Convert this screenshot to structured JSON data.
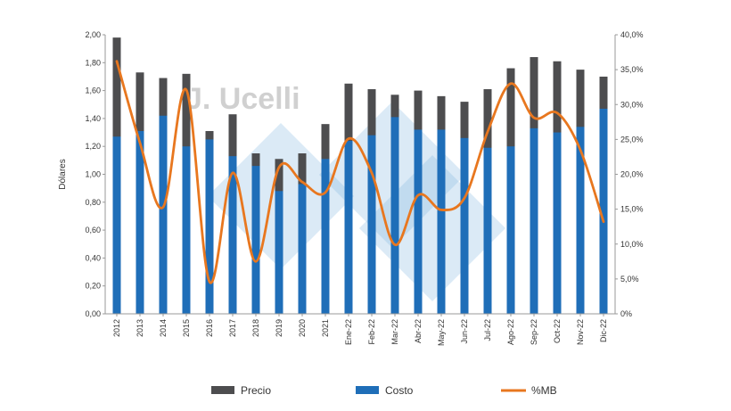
{
  "watermark": {
    "text": "J. Ucelli"
  },
  "chart_data": {
    "type": "bar",
    "ylabel": "Dólares",
    "ylim": [
      0,
      2
    ],
    "y_ticks": [
      "0,00",
      "0,20",
      "0,40",
      "0,60",
      "0,80",
      "1,00",
      "1,20",
      "1,40",
      "1,60",
      "1,80",
      "2,00"
    ],
    "y2lim": [
      0,
      40
    ],
    "y2_ticks": [
      "0%",
      "5,0%",
      "10,0%",
      "15,0%",
      "20,0%",
      "25,0%",
      "30,0%",
      "35,0%",
      "40,0%"
    ],
    "grid": false,
    "legend_position": "bottom",
    "categories": [
      "2012",
      "2013",
      "2014",
      "2015",
      "2016",
      "2017",
      "2018",
      "2019",
      "2020",
      "2021",
      "Ene-22",
      "Feb-22",
      "Mar-22",
      "Abr-22",
      "May-22",
      "Jun-22",
      "Jul-22",
      "Ago-22",
      "Sep-22",
      "Oct-22",
      "Nov-22",
      "Dic-22"
    ],
    "series": [
      {
        "name": "Precio",
        "type": "bar",
        "axis": "left",
        "color": "#4d4d4f",
        "values": [
          1.98,
          1.73,
          1.69,
          1.72,
          1.31,
          1.43,
          1.15,
          1.11,
          1.15,
          1.36,
          1.65,
          1.61,
          1.57,
          1.6,
          1.56,
          1.52,
          1.61,
          1.76,
          1.84,
          1.81,
          1.75,
          1.7
        ]
      },
      {
        "name": "Costo",
        "type": "bar",
        "axis": "left",
        "color": "#1f6eb8",
        "values": [
          1.27,
          1.31,
          1.42,
          1.2,
          1.25,
          1.13,
          1.06,
          0.88,
          0.93,
          1.11,
          1.24,
          1.28,
          1.41,
          1.32,
          1.32,
          1.26,
          1.19,
          1.2,
          1.33,
          1.3,
          1.34,
          1.47
        ]
      },
      {
        "name": "%MB",
        "type": "line",
        "axis": "right",
        "color": "#e8771f",
        "values": [
          36.2,
          24.5,
          15.3,
          32.1,
          4.6,
          20.2,
          7.5,
          21.0,
          18.9,
          17.4,
          25.1,
          20.2,
          9.9,
          17.0,
          14.9,
          16.6,
          26.1,
          33.0,
          28.1,
          28.8,
          23.5,
          13.2
        ]
      }
    ]
  }
}
